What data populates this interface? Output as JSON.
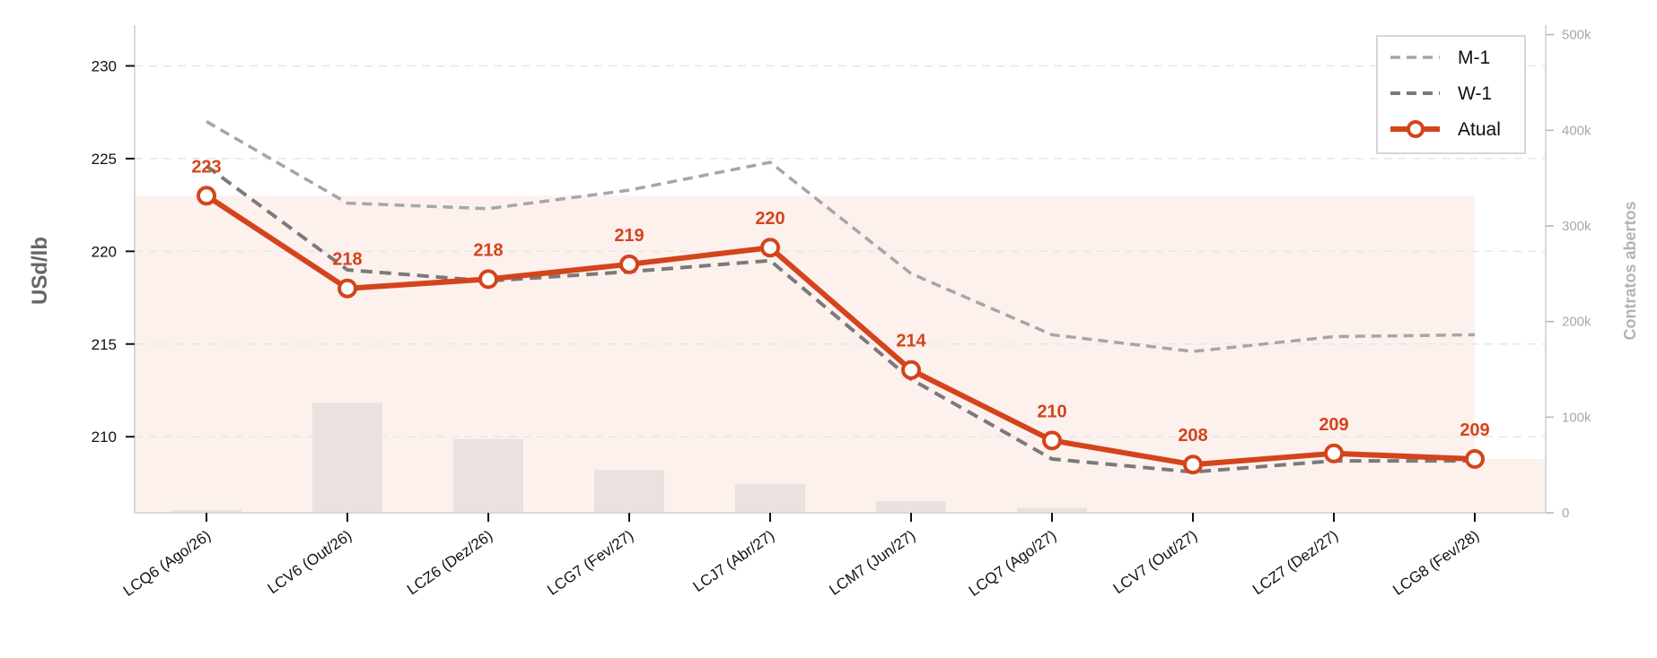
{
  "chart_data": {
    "type": "line",
    "categories": [
      "LCQ6 (Ago/26)",
      "LCV6 (Out/26)",
      "LCZ6 (Dez/26)",
      "LCG7 (Fev/27)",
      "LCJ7 (Abr/27)",
      "LCM7 (Jun/27)",
      "LCQ7 (Ago/27)",
      "LCV7 (Out/27)",
      "LCZ7 (Dez/27)",
      "LCG8 (Fev/28)"
    ],
    "ylabel": "USd/lb",
    "y2label": "Contratos abertos",
    "ylim": [
      205.9,
      232.2
    ],
    "yticks": [
      210,
      215,
      220,
      225,
      230
    ],
    "y2lim": [
      0,
      510000
    ],
    "y2ticks": [
      0,
      100000,
      200000,
      300000,
      400000,
      500000
    ],
    "y2ticklabels": [
      "0",
      "100k",
      "200k",
      "300k",
      "400k",
      "500k"
    ],
    "grid": "horizontal dashed",
    "legend_position": "top-right",
    "series": [
      {
        "name": "M-1",
        "style": "dashed",
        "color": "#a6a6a6",
        "values": [
          227.0,
          222.6,
          222.3,
          223.3,
          224.8,
          218.8,
          215.5,
          214.6,
          215.4,
          215.5
        ]
      },
      {
        "name": "W-1",
        "style": "dashed",
        "color": "#7a7a7a",
        "values": [
          224.6,
          219.0,
          218.4,
          218.9,
          219.5,
          213.1,
          208.8,
          208.1,
          208.7,
          208.7
        ]
      },
      {
        "name": "Atual",
        "style": "solid-markers",
        "color": "#d4441c",
        "values": [
          223.0,
          218.0,
          218.5,
          219.3,
          220.2,
          213.6,
          209.8,
          208.5,
          209.1,
          208.8
        ],
        "labels": [
          "223",
          "218",
          "218",
          "219",
          "220",
          "214",
          "210",
          "208",
          "209",
          "209"
        ]
      }
    ],
    "open_interest": [
      3000,
      115000,
      77000,
      45000,
      30000,
      12000,
      5000,
      0,
      0,
      0
    ],
    "colors": {
      "area_fill": "#fdf1ee",
      "bars": "#ebe2e0",
      "accent": "#d4441c"
    }
  }
}
